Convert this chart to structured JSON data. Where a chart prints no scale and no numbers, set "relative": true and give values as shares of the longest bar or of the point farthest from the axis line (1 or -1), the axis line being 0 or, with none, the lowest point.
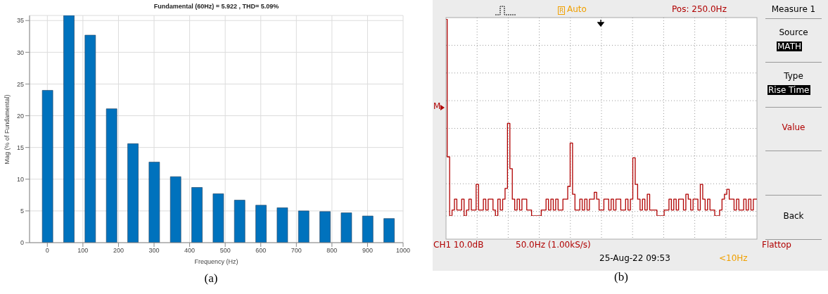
{
  "chart_data": [
    {
      "type": "bar",
      "title": "Fundamental (60Hz) = 5.922 , THD= 5.09%",
      "xlabel": "Frequency (Hz)",
      "ylabel": "Mag (% of Fundamental)",
      "x": [
        0,
        60,
        120,
        180,
        240,
        300,
        360,
        420,
        480,
        540,
        600,
        660,
        720,
        780,
        840,
        900,
        960
      ],
      "values": [
        24.0,
        35.8,
        32.7,
        21.1,
        15.6,
        12.7,
        10.4,
        8.7,
        7.7,
        6.7,
        5.9,
        5.5,
        5.0,
        4.9,
        4.7,
        4.2,
        3.8
      ],
      "color": "#0072bd",
      "xlim": [
        -50,
        1000
      ],
      "xticks": [
        0,
        100,
        200,
        300,
        400,
        500,
        600,
        700,
        800,
        900,
        1000
      ],
      "ylim": [
        0,
        35.8
      ],
      "yticks": [
        0,
        5,
        10,
        15,
        20,
        25,
        30,
        35
      ],
      "grid": true,
      "annotations": [
        "(a)"
      ]
    },
    {
      "type": "step",
      "relative": true,
      "grid": true,
      "categories": [
        null,
        null,
        null,
        null,
        null,
        null,
        null,
        null,
        null,
        null,
        null,
        null,
        null,
        null,
        null,
        null,
        null,
        null,
        null,
        null,
        null,
        null,
        null,
        null,
        null,
        null,
        null,
        null,
        null,
        null,
        null,
        null,
        null,
        null,
        null,
        null,
        null,
        null,
        null,
        null,
        null,
        null,
        null,
        null,
        null,
        null,
        null,
        null,
        null,
        null,
        null,
        null,
        null,
        null,
        null,
        null,
        null,
        null,
        null,
        null,
        null,
        null,
        null,
        null,
        null,
        null,
        null,
        null,
        null,
        null,
        null,
        null,
        null,
        null,
        null,
        null,
        null,
        null,
        null,
        null,
        null,
        null,
        null,
        null,
        null,
        null,
        null,
        null,
        null,
        null,
        null,
        null,
        null,
        null,
        null,
        null,
        null,
        null,
        null,
        null,
        null,
        null,
        null,
        null,
        null,
        null,
        null,
        null,
        null,
        null,
        null,
        null,
        null,
        null,
        null,
        null,
        null,
        null,
        null,
        null,
        null,
        null,
        null,
        null,
        null,
        null,
        null,
        null,
        null,
        null
      ],
      "series": [
        {
          "color": "#b00000",
          "values": [
            1,
            0.3,
            0,
            0.03,
            0.085,
            0.03,
            0.03,
            0.085,
            0,
            0.03,
            0.085,
            0.03,
            0.03,
            0.16,
            0.03,
            0.03,
            0.085,
            0.03,
            0.085,
            0.085,
            0.03,
            0,
            0.085,
            0.03,
            0.085,
            0.14,
            0.47,
            0.24,
            0.085,
            0.03,
            0.085,
            0.03,
            0.085,
            0.085,
            0.03,
            0.03,
            0,
            0,
            0,
            0,
            0.03,
            0.03,
            0.085,
            0.03,
            0.085,
            0.03,
            0.085,
            0.03,
            0.03,
            0.085,
            0.085,
            0.15,
            0.37,
            0.11,
            0.03,
            0.03,
            0.085,
            0.03,
            0.085,
            0.03,
            0.085,
            0.085,
            0.12,
            0.085,
            0.03,
            0.03,
            0.085,
            0.085,
            0.03,
            0.085,
            0.03,
            0.085,
            0.085,
            0.03,
            0.03,
            0.085,
            0.03,
            0.085,
            0.295,
            0.16,
            0.085,
            0.03,
            0.085,
            0.03,
            0.11,
            0.03,
            0.03,
            0.03,
            0,
            0,
            0,
            0.03,
            0.03,
            0.085,
            0.03,
            0.085,
            0.03,
            0.085,
            0.085,
            0.03,
            0.11,
            0.085,
            0.03,
            0.085,
            0.085,
            0.03,
            0.16,
            0.085,
            0.03,
            0.085,
            0.03,
            0.03,
            0,
            0,
            0.03,
            0.085,
            0.11,
            0.135,
            0.085,
            0.085,
            0.03,
            0.085,
            0.03,
            0.03,
            0.085,
            0.03,
            0.085,
            0.03,
            0.085,
            0.085
          ]
        }
      ],
      "annotations": [
        "R",
        "Auto",
        "Pos: 250.0Hz",
        "Measure 1",
        "Source",
        "MATH",
        "Type",
        "Rise Time",
        "Value",
        "Back",
        "M",
        "CH1 10.0dB",
        "50.0Hz (1.00kS/s)",
        "Flattop",
        "25-Aug-22 09:53",
        "<10Hz",
        "(b)"
      ]
    }
  ]
}
